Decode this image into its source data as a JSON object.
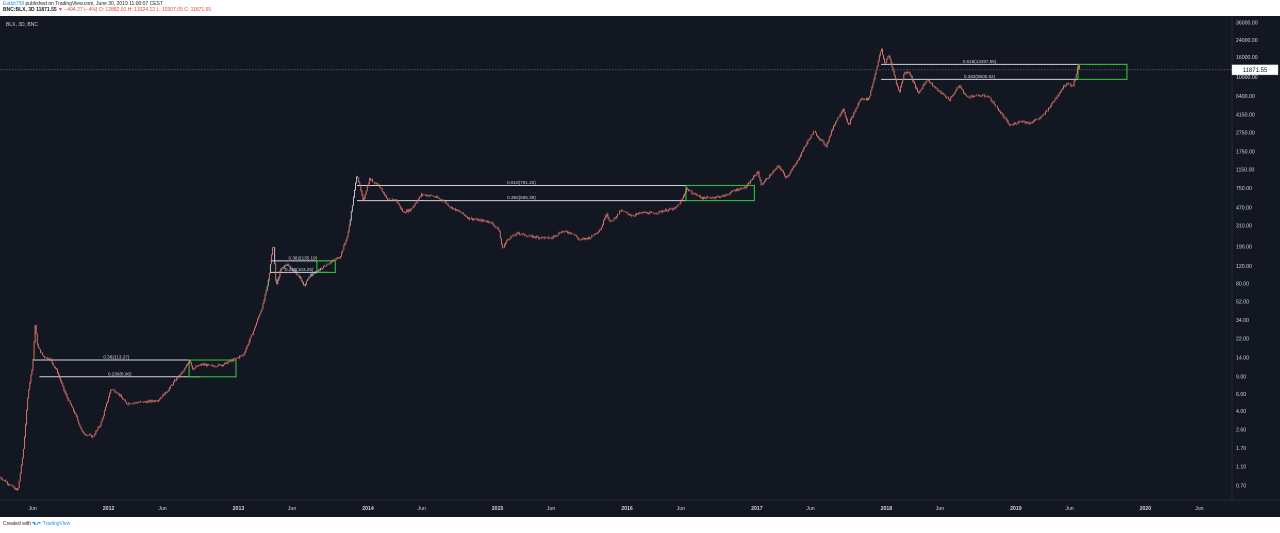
{
  "header": {
    "author": "Eatbit758",
    "published": "published on TradingView.com, June 30, 2019 11:00:07 CEST",
    "symbol": "BNC:BLX, 3D",
    "last": "11871.55",
    "change_arrow": "▼",
    "change": "−494.27 (−4%)",
    "open": "O: 12882.91",
    "high": "H: 13324.12",
    "low": "L: 10307.05",
    "close": "C: 11871.55"
  },
  "footer": {
    "created_with": "Created with",
    "brand": "TradingView"
  },
  "colors": {
    "background": "#131722",
    "candle": "#e0796b",
    "candle_early_up": "#c9ccd1",
    "fib_line": "#d1d4dc",
    "target_box": "#2fbf3b",
    "price_line": "#8a8e99",
    "axis_text": "#d1d4dc"
  },
  "chart_data": {
    "type": "candlestick",
    "legend_label": "BLX, 3D, BNC",
    "y_scale": "log",
    "y_range": [
      0.5,
      40000
    ],
    "x_range": [
      "2011-03-01",
      "2020-09-01"
    ],
    "current_price": "11871.55",
    "y_ticks": [
      "36000.00",
      "24000.00",
      "16000.00",
      "10000.00",
      "6400.00",
      "4150.00",
      "2750.00",
      "1750.00",
      "1150.00",
      "750.00",
      "470.00",
      "310.00",
      "190.00",
      "120.00",
      "80.00",
      "52.00",
      "34.00",
      "22.00",
      "14.00",
      "9.00",
      "6.00",
      "4.00",
      "2.60",
      "1.70",
      "1.10",
      "0.70"
    ],
    "x_ticks": [
      {
        "label": "Jun",
        "date": "2011-06-01",
        "major": false
      },
      {
        "label": "2012",
        "date": "2012-01-01",
        "major": true
      },
      {
        "label": "Jun",
        "date": "2012-06-01",
        "major": false
      },
      {
        "label": "2013",
        "date": "2013-01-01",
        "major": true
      },
      {
        "label": "Jun",
        "date": "2013-06-01",
        "major": false
      },
      {
        "label": "2014",
        "date": "2014-01-01",
        "major": true
      },
      {
        "label": "Jun",
        "date": "2014-06-01",
        "major": false
      },
      {
        "label": "2015",
        "date": "2015-01-01",
        "major": true
      },
      {
        "label": "Jun",
        "date": "2015-06-01",
        "major": false
      },
      {
        "label": "2016",
        "date": "2016-01-01",
        "major": true
      },
      {
        "label": "Jun",
        "date": "2016-06-01",
        "major": false
      },
      {
        "label": "2017",
        "date": "2017-01-01",
        "major": true
      },
      {
        "label": "Jun",
        "date": "2017-06-01",
        "major": false
      },
      {
        "label": "2018",
        "date": "2018-01-01",
        "major": true
      },
      {
        "label": "Jun",
        "date": "2018-06-01",
        "major": false
      },
      {
        "label": "2019",
        "date": "2019-01-01",
        "major": true
      },
      {
        "label": "Jun",
        "date": "2019-06-01",
        "major": false
      },
      {
        "label": "2020",
        "date": "2020-01-01",
        "major": true
      },
      {
        "label": "Jun",
        "date": "2020-06-01",
        "major": false
      }
    ],
    "price_path": [
      [
        "2011-03-01",
        0.85
      ],
      [
        "2011-04-01",
        0.7
      ],
      [
        "2011-04-20",
        0.62
      ],
      [
        "2011-05-05",
        1.5
      ],
      [
        "2011-05-20",
        6.5
      ],
      [
        "2011-06-01",
        12
      ],
      [
        "2011-06-08",
        30
      ],
      [
        "2011-06-15",
        18
      ],
      [
        "2011-07-01",
        14.5
      ],
      [
        "2011-07-20",
        13.5
      ],
      [
        "2011-08-10",
        10
      ],
      [
        "2011-09-01",
        6
      ],
      [
        "2011-10-01",
        3.6
      ],
      [
        "2011-10-20",
        2.4
      ],
      [
        "2011-11-18",
        2.2
      ],
      [
        "2011-12-10",
        3.0
      ],
      [
        "2012-01-08",
        6.8
      ],
      [
        "2012-01-25",
        6.2
      ],
      [
        "2012-02-20",
        4.8
      ],
      [
        "2012-03-20",
        4.9
      ],
      [
        "2012-04-20",
        5.0
      ],
      [
        "2012-05-20",
        5.2
      ],
      [
        "2012-06-15",
        6.5
      ],
      [
        "2012-07-10",
        8.5
      ],
      [
        "2012-08-01",
        10.5
      ],
      [
        "2012-08-17",
        13.5
      ],
      [
        "2012-08-25",
        10.8
      ],
      [
        "2012-09-20",
        12
      ],
      [
        "2012-10-20",
        11.5
      ],
      [
        "2012-11-20",
        12
      ],
      [
        "2012-12-20",
        13.5
      ],
      [
        "2013-01-15",
        15
      ],
      [
        "2013-02-15",
        28
      ],
      [
        "2013-03-10",
        47
      ],
      [
        "2013-03-25",
        80
      ],
      [
        "2013-04-09",
        210
      ],
      [
        "2013-04-17",
        75
      ],
      [
        "2013-05-01",
        115
      ],
      [
        "2013-05-20",
        122
      ],
      [
        "2013-06-15",
        100
      ],
      [
        "2013-07-05",
        75
      ],
      [
        "2013-07-20",
        95
      ],
      [
        "2013-08-15",
        110
      ],
      [
        "2013-09-15",
        130
      ],
      [
        "2013-10-15",
        150
      ],
      [
        "2013-11-05",
        250
      ],
      [
        "2013-11-18",
        500
      ],
      [
        "2013-12-01",
        1050
      ],
      [
        "2013-12-18",
        550
      ],
      [
        "2014-01-05",
        920
      ],
      [
        "2014-02-01",
        800
      ],
      [
        "2014-02-25",
        560
      ],
      [
        "2014-03-20",
        570
      ],
      [
        "2014-04-10",
        420
      ],
      [
        "2014-05-01",
        450
      ],
      [
        "2014-06-01",
        640
      ],
      [
        "2014-07-01",
        620
      ],
      [
        "2014-08-01",
        560
      ],
      [
        "2014-08-20",
        480
      ],
      [
        "2014-09-20",
        420
      ],
      [
        "2014-10-10",
        370
      ],
      [
        "2014-11-10",
        350
      ],
      [
        "2014-12-10",
        340
      ],
      [
        "2015-01-05",
        280
      ],
      [
        "2015-01-14",
        180
      ],
      [
        "2015-02-01",
        230
      ],
      [
        "2015-03-01",
        260
      ],
      [
        "2015-04-01",
        240
      ],
      [
        "2015-05-01",
        235
      ],
      [
        "2015-06-01",
        230
      ],
      [
        "2015-07-01",
        270
      ],
      [
        "2015-08-01",
        260
      ],
      [
        "2015-08-20",
        220
      ],
      [
        "2015-09-20",
        235
      ],
      [
        "2015-10-20",
        290
      ],
      [
        "2015-11-04",
        420
      ],
      [
        "2015-11-15",
        330
      ],
      [
        "2015-12-15",
        440
      ],
      [
        "2016-01-15",
        390
      ],
      [
        "2016-02-15",
        420
      ],
      [
        "2016-03-15",
        410
      ],
      [
        "2016-04-15",
        440
      ],
      [
        "2016-05-15",
        460
      ],
      [
        "2016-06-01",
        540
      ],
      [
        "2016-06-17",
        740
      ],
      [
        "2016-07-01",
        670
      ],
      [
        "2016-08-01",
        590
      ],
      [
        "2016-09-01",
        600
      ],
      [
        "2016-10-01",
        620
      ],
      [
        "2016-11-01",
        710
      ],
      [
        "2016-12-01",
        760
      ],
      [
        "2017-01-04",
        1100
      ],
      [
        "2017-01-12",
        800
      ],
      [
        "2017-02-01",
        950
      ],
      [
        "2017-03-03",
        1250
      ],
      [
        "2017-03-25",
        950
      ],
      [
        "2017-04-20",
        1300
      ],
      [
        "2017-05-20",
        2100
      ],
      [
        "2017-06-10",
        2800
      ],
      [
        "2017-07-15",
        2000
      ],
      [
        "2017-08-05",
        3200
      ],
      [
        "2017-09-01",
        4800
      ],
      [
        "2017-09-15",
        3200
      ],
      [
        "2017-10-20",
        6000
      ],
      [
        "2017-11-12",
        6000
      ],
      [
        "2017-11-28",
        10000
      ],
      [
        "2017-12-17",
        19500
      ],
      [
        "2017-12-28",
        13500
      ],
      [
        "2018-01-07",
        17000
      ],
      [
        "2018-01-20",
        11500
      ],
      [
        "2018-02-06",
        6900
      ],
      [
        "2018-02-20",
        11000
      ],
      [
        "2018-03-05",
        11400
      ],
      [
        "2018-04-01",
        6800
      ],
      [
        "2018-04-25",
        9500
      ],
      [
        "2018-05-25",
        7400
      ],
      [
        "2018-06-28",
        5900
      ],
      [
        "2018-07-25",
        8200
      ],
      [
        "2018-08-15",
        6300
      ],
      [
        "2018-09-15",
        6500
      ],
      [
        "2018-10-15",
        6400
      ],
      [
        "2018-11-20",
        4300
      ],
      [
        "2018-12-15",
        3200
      ],
      [
        "2019-01-15",
        3600
      ],
      [
        "2019-02-07",
        3400
      ],
      [
        "2019-03-15",
        3950
      ],
      [
        "2019-04-10",
        5200
      ],
      [
        "2019-05-14",
        8000
      ],
      [
        "2019-05-28",
        8800
      ],
      [
        "2019-06-10",
        8000
      ],
      [
        "2019-06-26",
        13300
      ],
      [
        "2019-06-30",
        11871.55
      ]
    ],
    "fib_levels": [
      {
        "label": "0.382(13.27)",
        "price": 13.27,
        "from": "2011-06-01",
        "to": "2012-09-15"
      },
      {
        "label": "0.236(8.96)",
        "price": 8.96,
        "from": "2011-06-20",
        "to": "2012-09-15"
      },
      {
        "label": "0.382(135.19)",
        "price": 135.19,
        "from": "2013-04-01",
        "to": "2013-10-01"
      },
      {
        "label": "0.236(103.25)",
        "price": 103.25,
        "from": "2013-04-01",
        "to": "2013-09-10"
      },
      {
        "label": "0.618(791.33)",
        "price": 791.33,
        "from": "2013-12-01",
        "to": "2016-06-15"
      },
      {
        "label": "0.382(555.39)",
        "price": 555.39,
        "from": "2013-12-01",
        "to": "2016-06-15"
      },
      {
        "label": "0.618(13497.55)",
        "price": 13497.55,
        "from": "2017-12-17",
        "to": "2019-06-25"
      },
      {
        "label": "0.382(9505.62)",
        "price": 9505.62,
        "from": "2017-12-17",
        "to": "2019-06-25"
      }
    ],
    "target_boxes": [
      {
        "from": "2012-08-15",
        "to": "2012-12-25",
        "low": 8.96,
        "high": 13.27
      },
      {
        "from": "2013-08-10",
        "to": "2013-10-01",
        "low": 103.25,
        "high": 135.19
      },
      {
        "from": "2016-06-15",
        "to": "2016-12-25",
        "low": 555.39,
        "high": 791.33
      },
      {
        "from": "2019-06-25",
        "to": "2019-11-10",
        "low": 9505.62,
        "high": 13497.55
      }
    ]
  }
}
